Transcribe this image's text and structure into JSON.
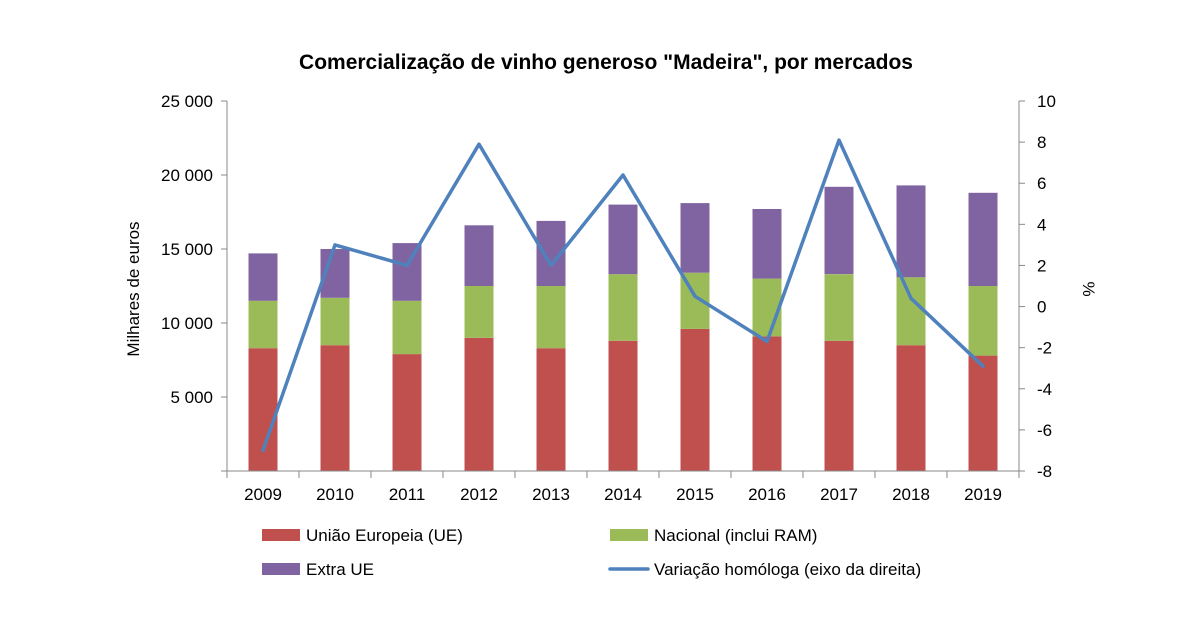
{
  "chart_data": {
    "type": "bar",
    "title": "Comercialização de vinho generoso \"Madeira\", por mercados",
    "ylabel": "Milhares de euros",
    "y2label": "%",
    "categories": [
      "2009",
      "2010",
      "2011",
      "2012",
      "2013",
      "2014",
      "2015",
      "2016",
      "2017",
      "2018",
      "2019"
    ],
    "ylim": [
      0,
      25000
    ],
    "y2lim": [
      -8,
      10
    ],
    "yticks": [
      {
        "value": 5000,
        "label": "5 000"
      },
      {
        "value": 10000,
        "label": "10 000"
      },
      {
        "value": 15000,
        "label": "15 000"
      },
      {
        "value": 20000,
        "label": "20 000"
      },
      {
        "value": 25000,
        "label": "25 000"
      }
    ],
    "y2ticks": [
      {
        "value": -8,
        "label": "-8"
      },
      {
        "value": -6,
        "label": "-6"
      },
      {
        "value": -4,
        "label": "-4"
      },
      {
        "value": -2,
        "label": "-2"
      },
      {
        "value": 0,
        "label": "0"
      },
      {
        "value": 2,
        "label": "2"
      },
      {
        "value": 4,
        "label": "4"
      },
      {
        "value": 6,
        "label": "6"
      },
      {
        "value": 8,
        "label": "8"
      },
      {
        "value": 10,
        "label": "10"
      }
    ],
    "stacked": true,
    "series": [
      {
        "name": "União Europeia (UE)",
        "kind": "bar",
        "color": "#C0504D",
        "values": [
          8300,
          8500,
          7900,
          9000,
          8300,
          8800,
          9600,
          9100,
          8800,
          8500,
          7800
        ]
      },
      {
        "name": "Nacional (inclui RAM)",
        "kind": "bar",
        "color": "#9BBB59",
        "values": [
          3200,
          3200,
          3600,
          3500,
          4200,
          4500,
          3800,
          3900,
          4500,
          4600,
          4700
        ]
      },
      {
        "name": "Extra UE",
        "kind": "bar",
        "color": "#8064A2",
        "values": [
          3200,
          3300,
          3900,
          4100,
          4400,
          4700,
          4700,
          4700,
          5900,
          6200,
          6300
        ]
      },
      {
        "name": "Variação homóloga (eixo da direita)",
        "kind": "line",
        "axis": "right",
        "color": "#4F81BD",
        "values": [
          -7.0,
          3.0,
          2.0,
          7.9,
          2.0,
          6.4,
          0.5,
          -1.7,
          8.1,
          0.4,
          -2.9
        ]
      }
    ],
    "legend_position": "bottom",
    "grid": false
  }
}
